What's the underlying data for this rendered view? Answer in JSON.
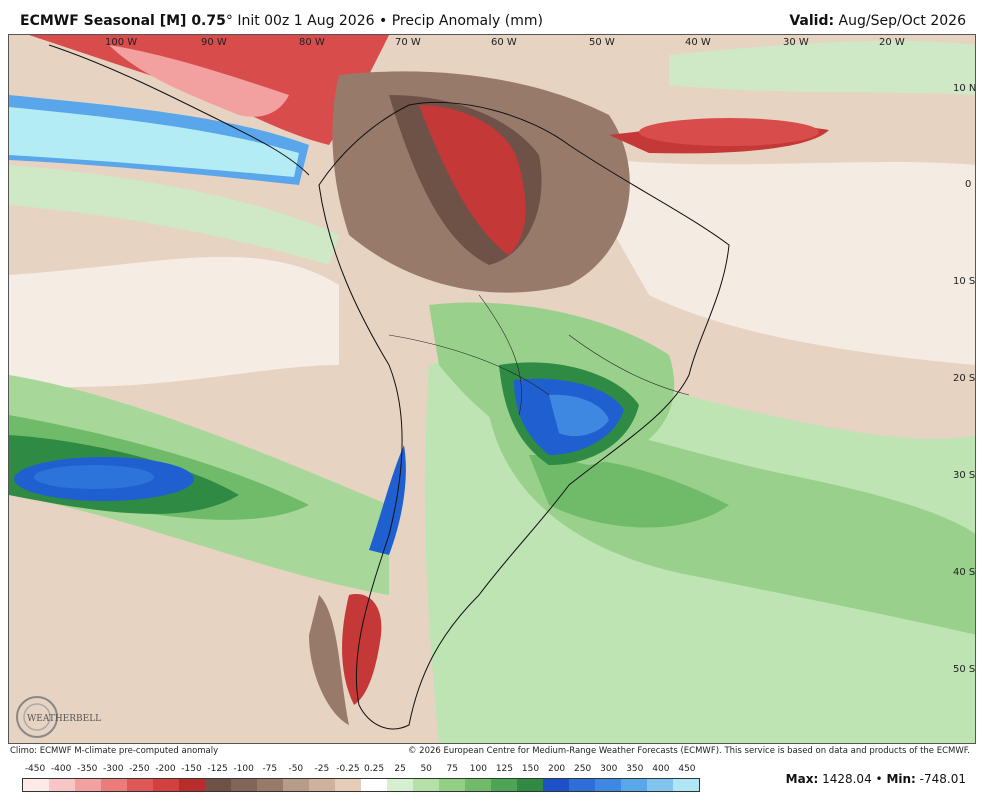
{
  "header": {
    "model": "ECMWF Seasonal [M] 0.75",
    "degree": "°",
    "init": "Init 00z 1 Aug 2026",
    "bullet": "•",
    "field": "Precip Anomaly (mm)",
    "valid_label": "Valid:",
    "valid_value": "Aug/Sep/Oct 2026"
  },
  "map": {
    "longitudes": [
      "100 W",
      "90 W",
      "80 W",
      "70 W",
      "60 W",
      "50 W",
      "40 W",
      "30 W",
      "20 W"
    ],
    "latitudes": [
      "10 N",
      "0",
      "10 S",
      "20 S",
      "30 S",
      "40 S",
      "50 S"
    ],
    "logo": "WEATHERBELL"
  },
  "footer": {
    "climo": "Climo: ECMWF M-climate pre-computed anomaly",
    "copyright": "© 2026 European Centre for Medium-Range Weather Forecasts (ECMWF). This service is based on data and products of the ECMWF."
  },
  "colorbar": {
    "labels": [
      "-450",
      "-400",
      "-350",
      "-300",
      "-250",
      "-200",
      "-150",
      "-125",
      "-100",
      "-75",
      "-50",
      "-25",
      "-0.25",
      "0.25",
      "25",
      "50",
      "75",
      "100",
      "125",
      "150",
      "200",
      "250",
      "300",
      "350",
      "400",
      "450"
    ],
    "colors": [
      "#fde9e8",
      "#f9c6c6",
      "#f3a0a0",
      "#ec7b7b",
      "#df5858",
      "#d43f3f",
      "#b92c2c",
      "#6e5247",
      "#806558",
      "#977a6a",
      "#b89c8a",
      "#cfb29d",
      "#e5cdb9",
      "#ffffff",
      "#d6efcf",
      "#b5e0a7",
      "#93cf87",
      "#6fbb6a",
      "#4ea456",
      "#2f8b44",
      "#1b50c8",
      "#2d6ed8",
      "#3f88e2",
      "#5aa6ea",
      "#80c4f0",
      "#aee6f6"
    ]
  },
  "stats": {
    "max_label": "Max:",
    "max_value": "1428.04",
    "sep": "•",
    "min_label": "Min:",
    "min_value": "-748.01"
  }
}
